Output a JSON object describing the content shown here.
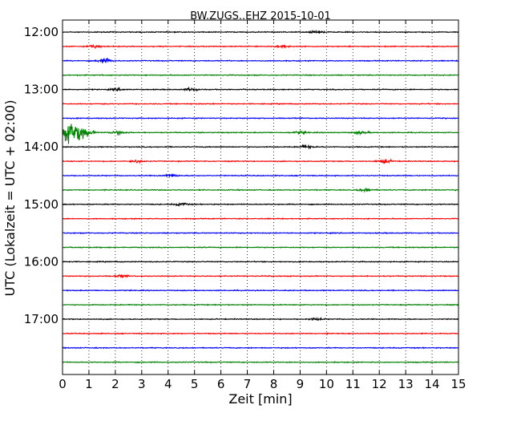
{
  "chart_data": {
    "type": "line",
    "title": "BW.ZUGS..EHZ 2015-10-01",
    "xlabel": "Zeit  [min]",
    "ylabel": "UTC (Lokalzeit = UTC + 02:00)",
    "xlim": [
      0,
      15
    ],
    "x_ticks": [
      "0",
      "1",
      "2",
      "3",
      "4",
      "5",
      "6",
      "7",
      "8",
      "9",
      "10",
      "11",
      "12",
      "13",
      "14",
      "15"
    ],
    "y_ticks": [
      "12:00",
      "13:00",
      "14:00",
      "15:00",
      "16:00",
      "17:00"
    ],
    "grid": "x-dotted",
    "trace_interval_min": 15,
    "traces": [
      {
        "start": "12:00",
        "color": "#000000",
        "events": [
          {
            "minute": 9.6,
            "amp": 0.25
          }
        ]
      },
      {
        "start": "12:15",
        "color": "#ff0000",
        "events": [
          {
            "minute": 1.2,
            "amp": 0.35
          },
          {
            "minute": 8.3,
            "amp": 0.3
          }
        ]
      },
      {
        "start": "12:30",
        "color": "#0000ff",
        "events": [
          {
            "minute": 1.6,
            "amp": 0.6
          }
        ]
      },
      {
        "start": "12:45",
        "color": "#008000",
        "events": []
      },
      {
        "start": "13:00",
        "color": "#000000",
        "events": [
          {
            "minute": 4.9,
            "amp": 0.35
          },
          {
            "minute": 2.1,
            "amp": 0.25
          }
        ]
      },
      {
        "start": "13:15",
        "color": "#ff0000",
        "events": []
      },
      {
        "start": "13:30",
        "color": "#0000ff",
        "events": []
      },
      {
        "start": "13:45",
        "color": "#008000",
        "events": [
          {
            "minute": 0.4,
            "amp": 3.0
          },
          {
            "minute": 2.1,
            "amp": 0.6
          },
          {
            "minute": 9.0,
            "amp": 0.3
          },
          {
            "minute": 11.3,
            "amp": 0.35
          }
        ]
      },
      {
        "start": "14:00",
        "color": "#000000",
        "events": [
          {
            "minute": 9.2,
            "amp": 0.35
          }
        ]
      },
      {
        "start": "14:15",
        "color": "#ff0000",
        "events": [
          {
            "minute": 12.2,
            "amp": 0.5
          },
          {
            "minute": 2.8,
            "amp": 0.3
          }
        ]
      },
      {
        "start": "14:30",
        "color": "#0000ff",
        "events": [
          {
            "minute": 4.1,
            "amp": 0.35
          }
        ]
      },
      {
        "start": "14:45",
        "color": "#008000",
        "events": [
          {
            "minute": 11.5,
            "amp": 0.4
          }
        ]
      },
      {
        "start": "15:00",
        "color": "#000000",
        "events": [
          {
            "minute": 4.5,
            "amp": 0.3
          }
        ]
      },
      {
        "start": "15:15",
        "color": "#ff0000",
        "events": []
      },
      {
        "start": "15:30",
        "color": "#0000ff",
        "events": []
      },
      {
        "start": "15:45",
        "color": "#008000",
        "events": []
      },
      {
        "start": "16:00",
        "color": "#000000",
        "events": []
      },
      {
        "start": "16:15",
        "color": "#ff0000",
        "events": [
          {
            "minute": 2.2,
            "amp": 0.25
          }
        ]
      },
      {
        "start": "16:30",
        "color": "#0000ff",
        "events": []
      },
      {
        "start": "16:45",
        "color": "#008000",
        "events": []
      },
      {
        "start": "17:00",
        "color": "#000000",
        "events": [
          {
            "minute": 9.6,
            "amp": 0.3
          }
        ]
      },
      {
        "start": "17:15",
        "color": "#ff0000",
        "events": []
      },
      {
        "start": "17:30",
        "color": "#0000ff",
        "events": []
      },
      {
        "start": "17:45",
        "color": "#008000",
        "events": []
      }
    ]
  }
}
